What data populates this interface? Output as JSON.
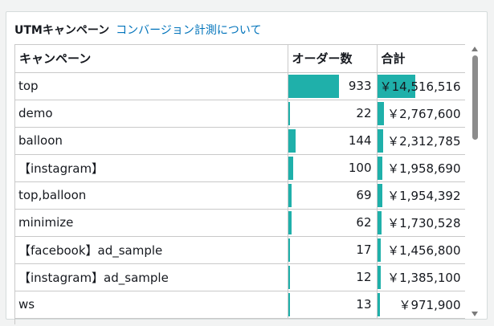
{
  "panel": {
    "title": "UTMキャンペーン",
    "link": "コンバージョン計測について"
  },
  "table": {
    "headers": [
      "キャンペーン",
      "オーダー数",
      "合計"
    ],
    "rows": [
      {
        "campaign": "top",
        "orders": "933",
        "total": "￥14,516,516"
      },
      {
        "campaign": "demo",
        "orders": "22",
        "total": "￥2,767,600"
      },
      {
        "campaign": "balloon",
        "orders": "144",
        "total": "￥2,312,785"
      },
      {
        "campaign": "【instagram】",
        "orders": "100",
        "total": "￥1,958,690"
      },
      {
        "campaign": "top,balloon",
        "orders": "69",
        "total": "￥1,954,392"
      },
      {
        "campaign": "minimize",
        "orders": "62",
        "total": "￥1,730,528"
      },
      {
        "campaign": "【facebook】ad_sample",
        "orders": "17",
        "total": "￥1,456,800"
      },
      {
        "campaign": "【instagram】ad_sample",
        "orders": "12",
        "total": "￥1,385,100"
      },
      {
        "campaign": "ws",
        "orders": "13",
        "total": "￥971,900"
      }
    ]
  },
  "colors": {
    "bar": "#1fb0aa",
    "link": "#0073bb"
  },
  "icons": {
    "scroll_up": "triangle-up-icon",
    "scroll_down": "triangle-down-icon"
  }
}
